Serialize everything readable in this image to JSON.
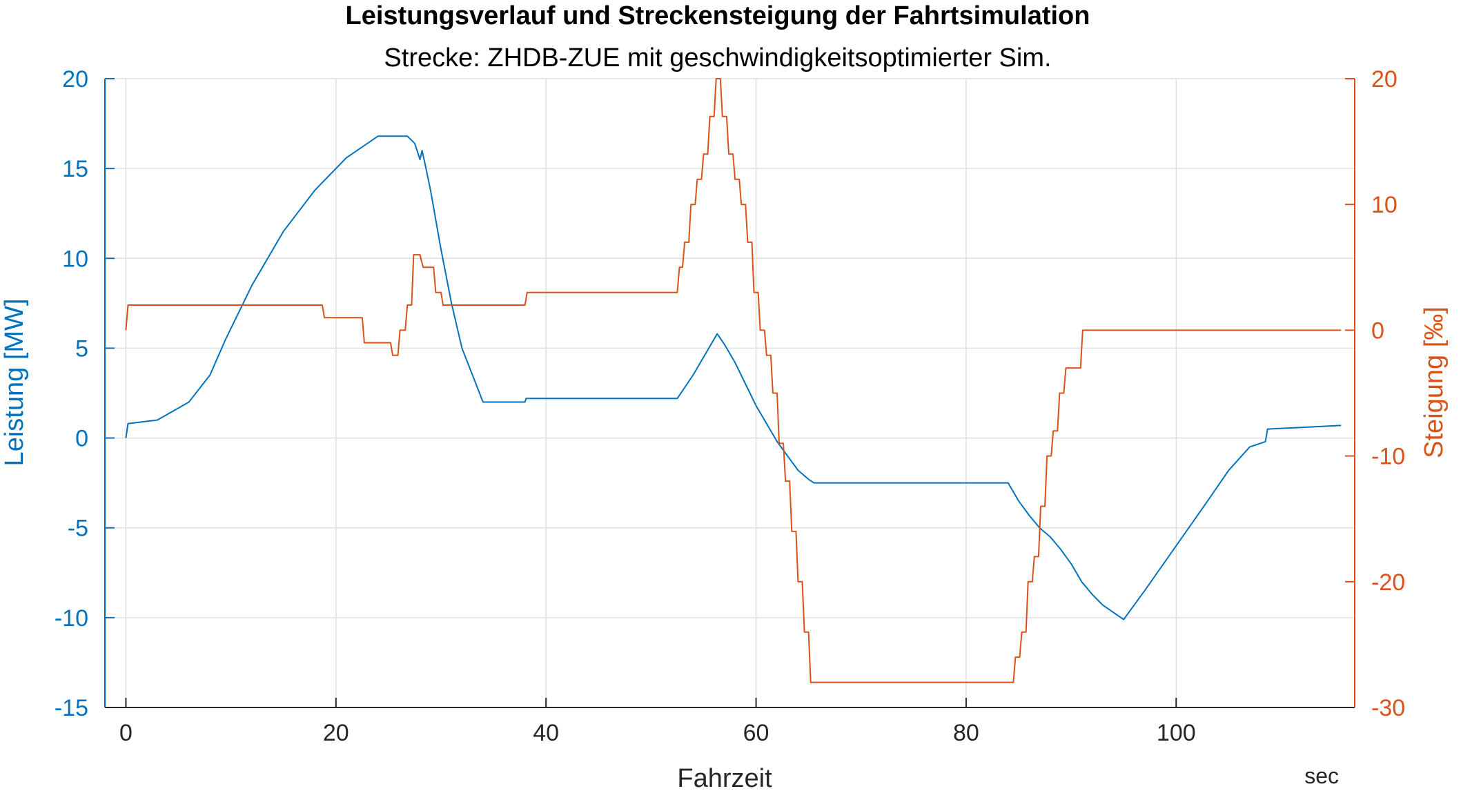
{
  "chart_data": {
    "type": "line",
    "title": "Leistungsverlauf und Streckensteigung der Fahrtsimulation",
    "subtitle": "Strecke: ZHDB-ZUE mit geschwindigkeitsoptimierter Sim.",
    "xlabel": "Fahrzeit",
    "xunit": "sec",
    "ylabel_left": "Leistung [MW]",
    "ylabel_right": "Steigung [‰]",
    "xlim": [
      -2,
      117
    ],
    "ylim_left": [
      -15,
      20
    ],
    "ylim_right": [
      -30,
      20
    ],
    "x_ticks": [
      "0",
      "20",
      "40",
      "60",
      "80",
      "100"
    ],
    "y_ticks_left": [
      "20",
      "15",
      "10",
      "5",
      "0",
      "-5",
      "-10",
      "-15"
    ],
    "y_ticks_right": [
      "20",
      "10",
      "0",
      "-10",
      "-20",
      "-30"
    ],
    "grid": true,
    "colors": {
      "leistung": "#0072bd",
      "steigung": "#d95319",
      "axis": "#262626",
      "grid": "#dfdfdf"
    },
    "series": [
      {
        "name": "Leistung",
        "axis": "left",
        "color": "#0072bd",
        "x": [
          0,
          0.2,
          3,
          6,
          8,
          9.5,
          12,
          15,
          18,
          21,
          24,
          25,
          26.8,
          27.5,
          28,
          28.2,
          28.5,
          29,
          30,
          31,
          32,
          34,
          38,
          38.1,
          52.5,
          54,
          55,
          56,
          56.3,
          57,
          58,
          59,
          60,
          61,
          62,
          63,
          64,
          65,
          65.5,
          84,
          85,
          86,
          87,
          88,
          89,
          90,
          91,
          92,
          93,
          95,
          97,
          100,
          103,
          105,
          107,
          108.5,
          108.7,
          115.7
        ],
        "y": [
          0,
          0.8,
          1.0,
          2.0,
          3.5,
          5.5,
          8.5,
          11.5,
          13.8,
          15.6,
          16.8,
          16.8,
          16.8,
          16.4,
          15.5,
          16.0,
          15.2,
          13.8,
          10.5,
          7.5,
          5.0,
          2.0,
          2.0,
          2.2,
          2.2,
          3.5,
          4.5,
          5.5,
          5.8,
          5.2,
          4.2,
          3.0,
          1.8,
          0.8,
          -0.2,
          -1.0,
          -1.8,
          -2.3,
          -2.5,
          -2.5,
          -3.5,
          -4.3,
          -5.0,
          -5.5,
          -6.2,
          -7.0,
          -8.0,
          -8.7,
          -9.3,
          -10.1,
          -8.5,
          -6.0,
          -3.5,
          -1.8,
          -0.5,
          -0.2,
          0.5,
          0.7
        ]
      },
      {
        "name": "Steigung",
        "axis": "right",
        "color": "#d95319",
        "x": [
          0,
          0.2,
          18.7,
          18.9,
          22.5,
          22.7,
          25.2,
          25.4,
          25.9,
          26.1,
          26.6,
          26.8,
          27.2,
          27.4,
          28,
          28.3,
          29.3,
          29.5,
          30,
          30.2,
          30.7,
          30.9,
          38,
          38.2,
          52.5,
          52.7,
          53,
          53.2,
          53.6,
          53.8,
          54.2,
          54.4,
          54.8,
          55,
          55.4,
          55.6,
          56,
          56.2,
          56.6,
          56.8,
          57.2,
          57.4,
          57.8,
          58,
          58.4,
          58.6,
          59,
          59.2,
          59.6,
          59.8,
          60.2,
          60.4,
          60.8,
          61,
          61.4,
          61.6,
          62,
          62.2,
          62.6,
          62.8,
          63.2,
          63.4,
          63.8,
          64,
          64.4,
          64.6,
          65,
          65.2,
          84.5,
          84.7,
          85.1,
          85.3,
          85.7,
          85.9,
          86.3,
          86.5,
          86.9,
          87.1,
          87.5,
          87.7,
          88.1,
          88.3,
          88.7,
          88.9,
          89.3,
          89.5,
          90.9,
          91.1,
          115.7
        ],
        "y": [
          0,
          2,
          2,
          1,
          1,
          -1,
          -1,
          -2,
          -2,
          0,
          0,
          2,
          2,
          6,
          6,
          5,
          5,
          3,
          3,
          2,
          2,
          2,
          2,
          3,
          3,
          5,
          5,
          7,
          7,
          10,
          10,
          12,
          12,
          14,
          14,
          17,
          17,
          20,
          20,
          17,
          17,
          14,
          14,
          12,
          12,
          10,
          10,
          7,
          7,
          3,
          3,
          0,
          0,
          -2,
          -2,
          -5,
          -5,
          -9,
          -9,
          -12,
          -12,
          -16,
          -16,
          -20,
          -20,
          -24,
          -24,
          -28,
          -28,
          -26,
          -26,
          -24,
          -24,
          -20,
          -20,
          -18,
          -18,
          -14,
          -14,
          -10,
          -10,
          -8,
          -8,
          -5,
          -5,
          -3,
          -3,
          0,
          0
        ]
      }
    ]
  }
}
